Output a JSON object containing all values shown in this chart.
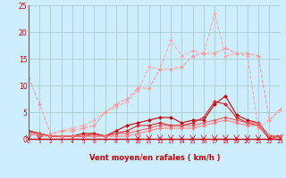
{
  "background_color": "#cceeff",
  "grid_color": "#aacccc",
  "x_min": 0,
  "x_max": 23,
  "y_min": 0,
  "y_max": 25,
  "xlabel": "Vent moyen/en rafales ( km/h )",
  "xlabel_color": "#cc0000",
  "yticks": [
    0,
    5,
    10,
    15,
    20,
    25
  ],
  "xticks": [
    0,
    1,
    2,
    3,
    4,
    5,
    6,
    7,
    8,
    9,
    10,
    11,
    12,
    13,
    14,
    15,
    16,
    17,
    18,
    19,
    20,
    21,
    22,
    23
  ],
  "series": [
    {
      "x": [
        0,
        1,
        2,
        3,
        4,
        5,
        6,
        7,
        8,
        9,
        10,
        11,
        12,
        13,
        14,
        15,
        16,
        17,
        18,
        19,
        20,
        21,
        22,
        23
      ],
      "y": [
        1.5,
        1.0,
        0.5,
        1.5,
        2.0,
        2.5,
        3.5,
        5.0,
        6.0,
        7.0,
        9.0,
        13.5,
        13.0,
        18.5,
        15.5,
        16.5,
        16.0,
        23.5,
        15.5,
        16.0,
        15.5,
        2.0,
        3.5,
        5.5
      ],
      "color": "#ffaaaa",
      "marker": "D",
      "markersize": 2.0,
      "linewidth": 0.8,
      "linestyle": "--"
    },
    {
      "x": [
        0,
        1,
        2,
        3,
        4,
        5,
        6,
        7,
        8,
        9,
        10,
        11,
        12,
        13,
        14,
        15,
        16,
        17,
        18,
        19,
        20,
        21,
        22,
        23
      ],
      "y": [
        11.5,
        6.5,
        1.0,
        1.5,
        1.5,
        2.0,
        2.5,
        5.0,
        6.5,
        7.5,
        9.5,
        9.5,
        13.0,
        13.0,
        13.5,
        15.5,
        16.0,
        16.0,
        17.0,
        16.0,
        16.0,
        15.5,
        3.5,
        5.5
      ],
      "color": "#ff9999",
      "marker": "D",
      "markersize": 2.0,
      "linewidth": 0.8,
      "linestyle": "--"
    },
    {
      "x": [
        0,
        1,
        2,
        3,
        4,
        5,
        6,
        7,
        8,
        9,
        10,
        11,
        12,
        13,
        14,
        15,
        16,
        17,
        18,
        19,
        20,
        21,
        22,
        23
      ],
      "y": [
        1.5,
        1.0,
        0.5,
        0.5,
        0.5,
        1.0,
        1.0,
        0.5,
        1.5,
        2.5,
        3.0,
        3.5,
        4.0,
        4.0,
        3.0,
        3.5,
        3.5,
        6.5,
        8.0,
        4.5,
        3.5,
        3.0,
        0.5,
        0.5
      ],
      "color": "#cc0000",
      "marker": "D",
      "markersize": 2.0,
      "linewidth": 0.8,
      "linestyle": "-"
    },
    {
      "x": [
        0,
        1,
        2,
        3,
        4,
        5,
        6,
        7,
        8,
        9,
        10,
        11,
        12,
        13,
        14,
        15,
        16,
        17,
        18,
        19,
        20,
        21,
        22,
        23
      ],
      "y": [
        1.5,
        1.0,
        0.5,
        0.5,
        0.5,
        0.5,
        1.0,
        0.5,
        1.0,
        1.5,
        2.5,
        2.5,
        3.0,
        2.5,
        2.5,
        3.0,
        4.0,
        7.0,
        6.5,
        4.0,
        3.0,
        2.5,
        0.0,
        0.5
      ],
      "color": "#dd2222",
      "marker": "D",
      "markersize": 2.0,
      "linewidth": 0.8,
      "linestyle": "-"
    },
    {
      "x": [
        0,
        1,
        2,
        3,
        4,
        5,
        6,
        7,
        8,
        9,
        10,
        11,
        12,
        13,
        14,
        15,
        16,
        17,
        18,
        19,
        20,
        21,
        22,
        23
      ],
      "y": [
        1.0,
        1.0,
        0.5,
        0.5,
        0.5,
        0.5,
        0.5,
        0.5,
        1.0,
        1.0,
        1.5,
        2.0,
        2.5,
        2.5,
        2.5,
        2.5,
        3.0,
        3.5,
        4.0,
        3.5,
        3.0,
        3.0,
        0.5,
        0.5
      ],
      "color": "#ee5555",
      "marker": "D",
      "markersize": 1.8,
      "linewidth": 0.7,
      "linestyle": "-"
    },
    {
      "x": [
        0,
        1,
        2,
        3,
        4,
        5,
        6,
        7,
        8,
        9,
        10,
        11,
        12,
        13,
        14,
        15,
        16,
        17,
        18,
        19,
        20,
        21,
        22,
        23
      ],
      "y": [
        1.0,
        0.5,
        0.5,
        0.5,
        0.5,
        0.5,
        0.5,
        0.5,
        0.5,
        0.5,
        1.0,
        1.5,
        2.0,
        2.0,
        2.0,
        2.0,
        2.5,
        3.0,
        3.5,
        3.0,
        2.5,
        2.5,
        0.5,
        0.5
      ],
      "color": "#ff7777",
      "marker": "D",
      "markersize": 1.8,
      "linewidth": 0.7,
      "linestyle": "-"
    }
  ],
  "wind_arrows_x": [
    0,
    1,
    10,
    11,
    12,
    13,
    14,
    15,
    16,
    17,
    18,
    19,
    20,
    21,
    22,
    23
  ],
  "wind_arrow_color": "#cc0000"
}
